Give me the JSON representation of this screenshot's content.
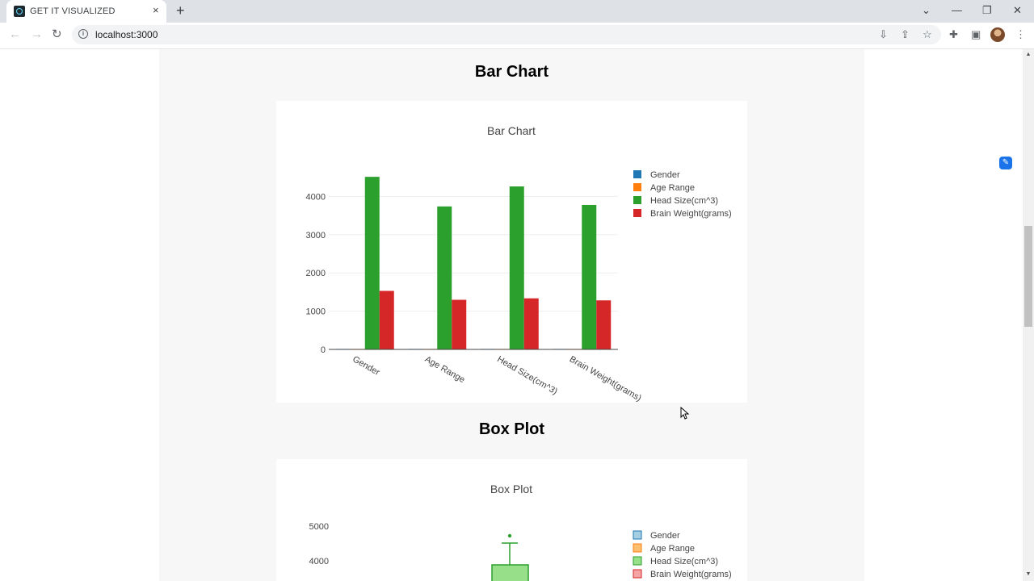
{
  "browser": {
    "tab_title": "GET IT VISUALIZED",
    "tab_close": "×",
    "new_tab": "+",
    "url": "localhost:3000",
    "window_controls": [
      "⌄",
      "—",
      "❐",
      "✕"
    ]
  },
  "page": {
    "bar_section_title": "Bar Chart",
    "box_section_title": "Box Plot"
  },
  "chart_data": [
    {
      "type": "bar",
      "title": "Bar Chart",
      "categories": [
        "Gender",
        "Age Range",
        "Head Size(cm^3)",
        "Brain Weight(grams)"
      ],
      "series": [
        {
          "name": "Gender",
          "color": "#1f77b4",
          "values": [
            1,
            1,
            1,
            1
          ]
        },
        {
          "name": "Age Range",
          "color": "#ff7f0e",
          "values": [
            1,
            1,
            1,
            1
          ]
        },
        {
          "name": "Head Size(cm^3)",
          "color": "#2ca02c",
          "values": [
            4512,
            3738,
            4261,
            3777
          ]
        },
        {
          "name": "Brain Weight(grams)",
          "color": "#d62728",
          "values": [
            1530,
            1297,
            1335,
            1282
          ]
        }
      ],
      "yticks": [
        "0",
        "1000",
        "2000",
        "3000",
        "4000"
      ],
      "ylim": [
        0,
        4750
      ],
      "legend": "top-right"
    },
    {
      "type": "box",
      "title": "Box Plot",
      "yticks": [
        "4000",
        "5000"
      ],
      "legend_entries": [
        "Gender",
        "Age Range",
        "Head Size(cm^3)",
        "Brain Weight(grams)"
      ],
      "head_size_box": {
        "q3": 3900,
        "upper_fence": 4510,
        "outlier": 4750
      }
    }
  ]
}
